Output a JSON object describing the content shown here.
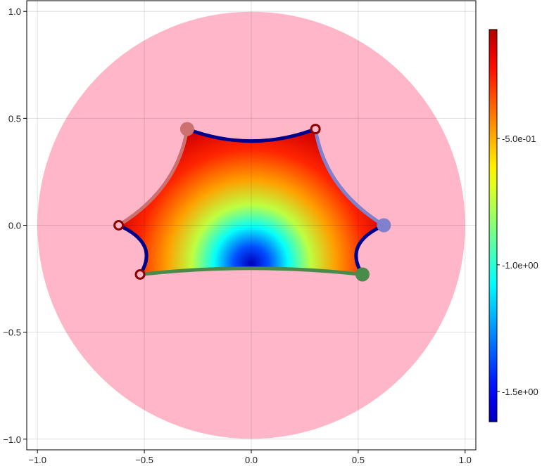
{
  "chart_data": {
    "type": "heatmap",
    "title": "",
    "xlabel": "",
    "ylabel": "",
    "xlim": [
      -1.05,
      1.05
    ],
    "ylim": [
      -1.05,
      1.05
    ],
    "x_ticks": [
      {
        "value": -1.0,
        "label": "−1.0"
      },
      {
        "value": -0.5,
        "label": "−0.5"
      },
      {
        "value": 0.0,
        "label": "0.0"
      },
      {
        "value": 0.5,
        "label": "0.5"
      },
      {
        "value": 1.0,
        "label": "1.0"
      }
    ],
    "y_ticks": [
      {
        "value": -1.0,
        "label": "−1.0"
      },
      {
        "value": -0.5,
        "label": "−0.5"
      },
      {
        "value": 0.0,
        "label": "0.0"
      },
      {
        "value": 0.5,
        "label": "0.5"
      },
      {
        "value": 1.0,
        "label": "1.0"
      }
    ],
    "grid": true,
    "disk": {
      "center": [
        0,
        0
      ],
      "radius": 1.0,
      "color": "#ffb6c8"
    },
    "region_vertices": [
      {
        "x": -0.3,
        "y": 0.45
      },
      {
        "x": 0.3,
        "y": 0.45
      },
      {
        "x": 0.62,
        "y": 0.0
      },
      {
        "x": 0.52,
        "y": -0.23
      },
      {
        "x": -0.52,
        "y": -0.23
      },
      {
        "x": -0.62,
        "y": 0.0
      }
    ],
    "edges": [
      {
        "from": 0,
        "to": 1,
        "color": "#00008b"
      },
      {
        "from": 1,
        "to": 2,
        "color": "#8080cc"
      },
      {
        "from": 2,
        "to": 3,
        "color": "#00008b"
      },
      {
        "from": 3,
        "to": 4,
        "color": "#4a8a4a"
      },
      {
        "from": 4,
        "to": 5,
        "color": "#00008b"
      },
      {
        "from": 5,
        "to": 0,
        "color": "#cc7070"
      }
    ],
    "vertex_markers": [
      {
        "vertex": 0,
        "color": "#cc7070",
        "style": "filled"
      },
      {
        "vertex": 1,
        "color": "#8b0000",
        "style": "ring"
      },
      {
        "vertex": 2,
        "color": "#8080cc",
        "style": "filled"
      },
      {
        "vertex": 3,
        "color": "#4a8a4a",
        "style": "filled"
      },
      {
        "vertex": 4,
        "color": "#8b0000",
        "style": "ring"
      },
      {
        "vertex": 5,
        "color": "#8b0000",
        "style": "ring"
      }
    ],
    "colorscale": "jet",
    "colorbar": {
      "min": -1.62,
      "max": -0.07,
      "ticks": [
        {
          "value": -0.5,
          "label": "-5.0e-01"
        },
        {
          "value": -1.0,
          "label": "-1.0e+00"
        },
        {
          "value": -1.5,
          "label": "-1.5e+00"
        }
      ]
    },
    "field_min_location": [
      0.0,
      -0.18
    ]
  }
}
